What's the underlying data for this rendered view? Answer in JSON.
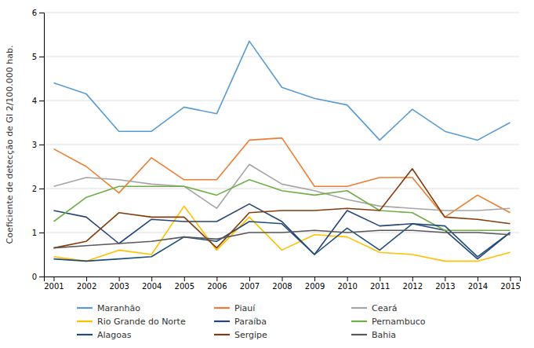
{
  "chart_data": {
    "type": "line",
    "ylabel": "Coeficiente de detecção de GI 2/100.000 hab.",
    "x": [
      2001,
      2002,
      2003,
      2004,
      2005,
      2006,
      2007,
      2008,
      2009,
      2010,
      2011,
      2012,
      2013,
      2014,
      2015
    ],
    "series": [
      {
        "name": "Maranhão",
        "color": "#5B9BD5",
        "values": [
          4.4,
          4.15,
          3.3,
          3.3,
          3.85,
          3.7,
          5.35,
          4.3,
          4.05,
          3.9,
          3.1,
          3.8,
          3.3,
          3.1,
          3.5
        ]
      },
      {
        "name": "Piauí",
        "color": "#ED7D31",
        "values": [
          2.9,
          2.5,
          1.9,
          2.7,
          2.2,
          2.2,
          3.1,
          3.15,
          2.05,
          2.05,
          2.25,
          2.25,
          1.35,
          1.85,
          1.45
        ]
      },
      {
        "name": "Ceará",
        "color": "#A5A5A5",
        "values": [
          2.05,
          2.25,
          2.2,
          2.1,
          2.05,
          1.55,
          2.55,
          2.1,
          1.95,
          1.75,
          1.6,
          1.55,
          1.5,
          1.5,
          1.55
        ]
      },
      {
        "name": "Rio Grande do Norte",
        "color": "#FFC000",
        "values": [
          0.45,
          0.35,
          0.6,
          0.5,
          1.6,
          0.6,
          1.35,
          0.6,
          0.95,
          0.9,
          0.55,
          0.5,
          0.35,
          0.35,
          0.55
        ]
      },
      {
        "name": "Paraíba",
        "color": "#264478",
        "values": [
          1.5,
          1.35,
          0.75,
          1.3,
          1.25,
          1.25,
          1.65,
          1.25,
          0.5,
          1.5,
          1.15,
          1.2,
          1.05,
          0.4,
          1.0
        ]
      },
      {
        "name": "Pernambuco",
        "color": "#70AD47",
        "values": [
          1.25,
          1.8,
          2.05,
          2.05,
          2.05,
          1.85,
          2.2,
          1.95,
          1.85,
          1.95,
          1.5,
          1.45,
          1.05,
          1.05,
          1.05
        ]
      },
      {
        "name": "Alagoas",
        "color": "#1F4E79",
        "values": [
          0.4,
          0.35,
          0.4,
          0.45,
          0.9,
          0.8,
          1.25,
          1.2,
          0.5,
          1.1,
          0.6,
          1.2,
          1.15,
          0.45,
          1.0
        ]
      },
      {
        "name": "Sergipe",
        "color": "#843C0C",
        "values": [
          0.65,
          0.8,
          1.45,
          1.35,
          1.35,
          0.65,
          1.45,
          1.5,
          1.5,
          1.55,
          1.5,
          2.45,
          1.35,
          1.3,
          1.2
        ]
      },
      {
        "name": "Bahia",
        "color": "#595959",
        "values": [
          0.65,
          0.7,
          0.75,
          0.8,
          0.9,
          0.85,
          1.0,
          1.0,
          1.05,
          1.0,
          1.05,
          1.05,
          1.0,
          1.0,
          0.95
        ]
      }
    ],
    "xlim": [
      2000.7,
      2015.3
    ],
    "xticks": [
      2001,
      2002,
      2003,
      2004,
      2005,
      2006,
      2007,
      2008,
      2009,
      2010,
      2011,
      2012,
      2013,
      2014,
      2015
    ],
    "ylim": [
      0,
      6
    ],
    "yticks": [
      0,
      1,
      2,
      3,
      4,
      5,
      6
    ],
    "grid": "y",
    "legend": "bottom"
  }
}
